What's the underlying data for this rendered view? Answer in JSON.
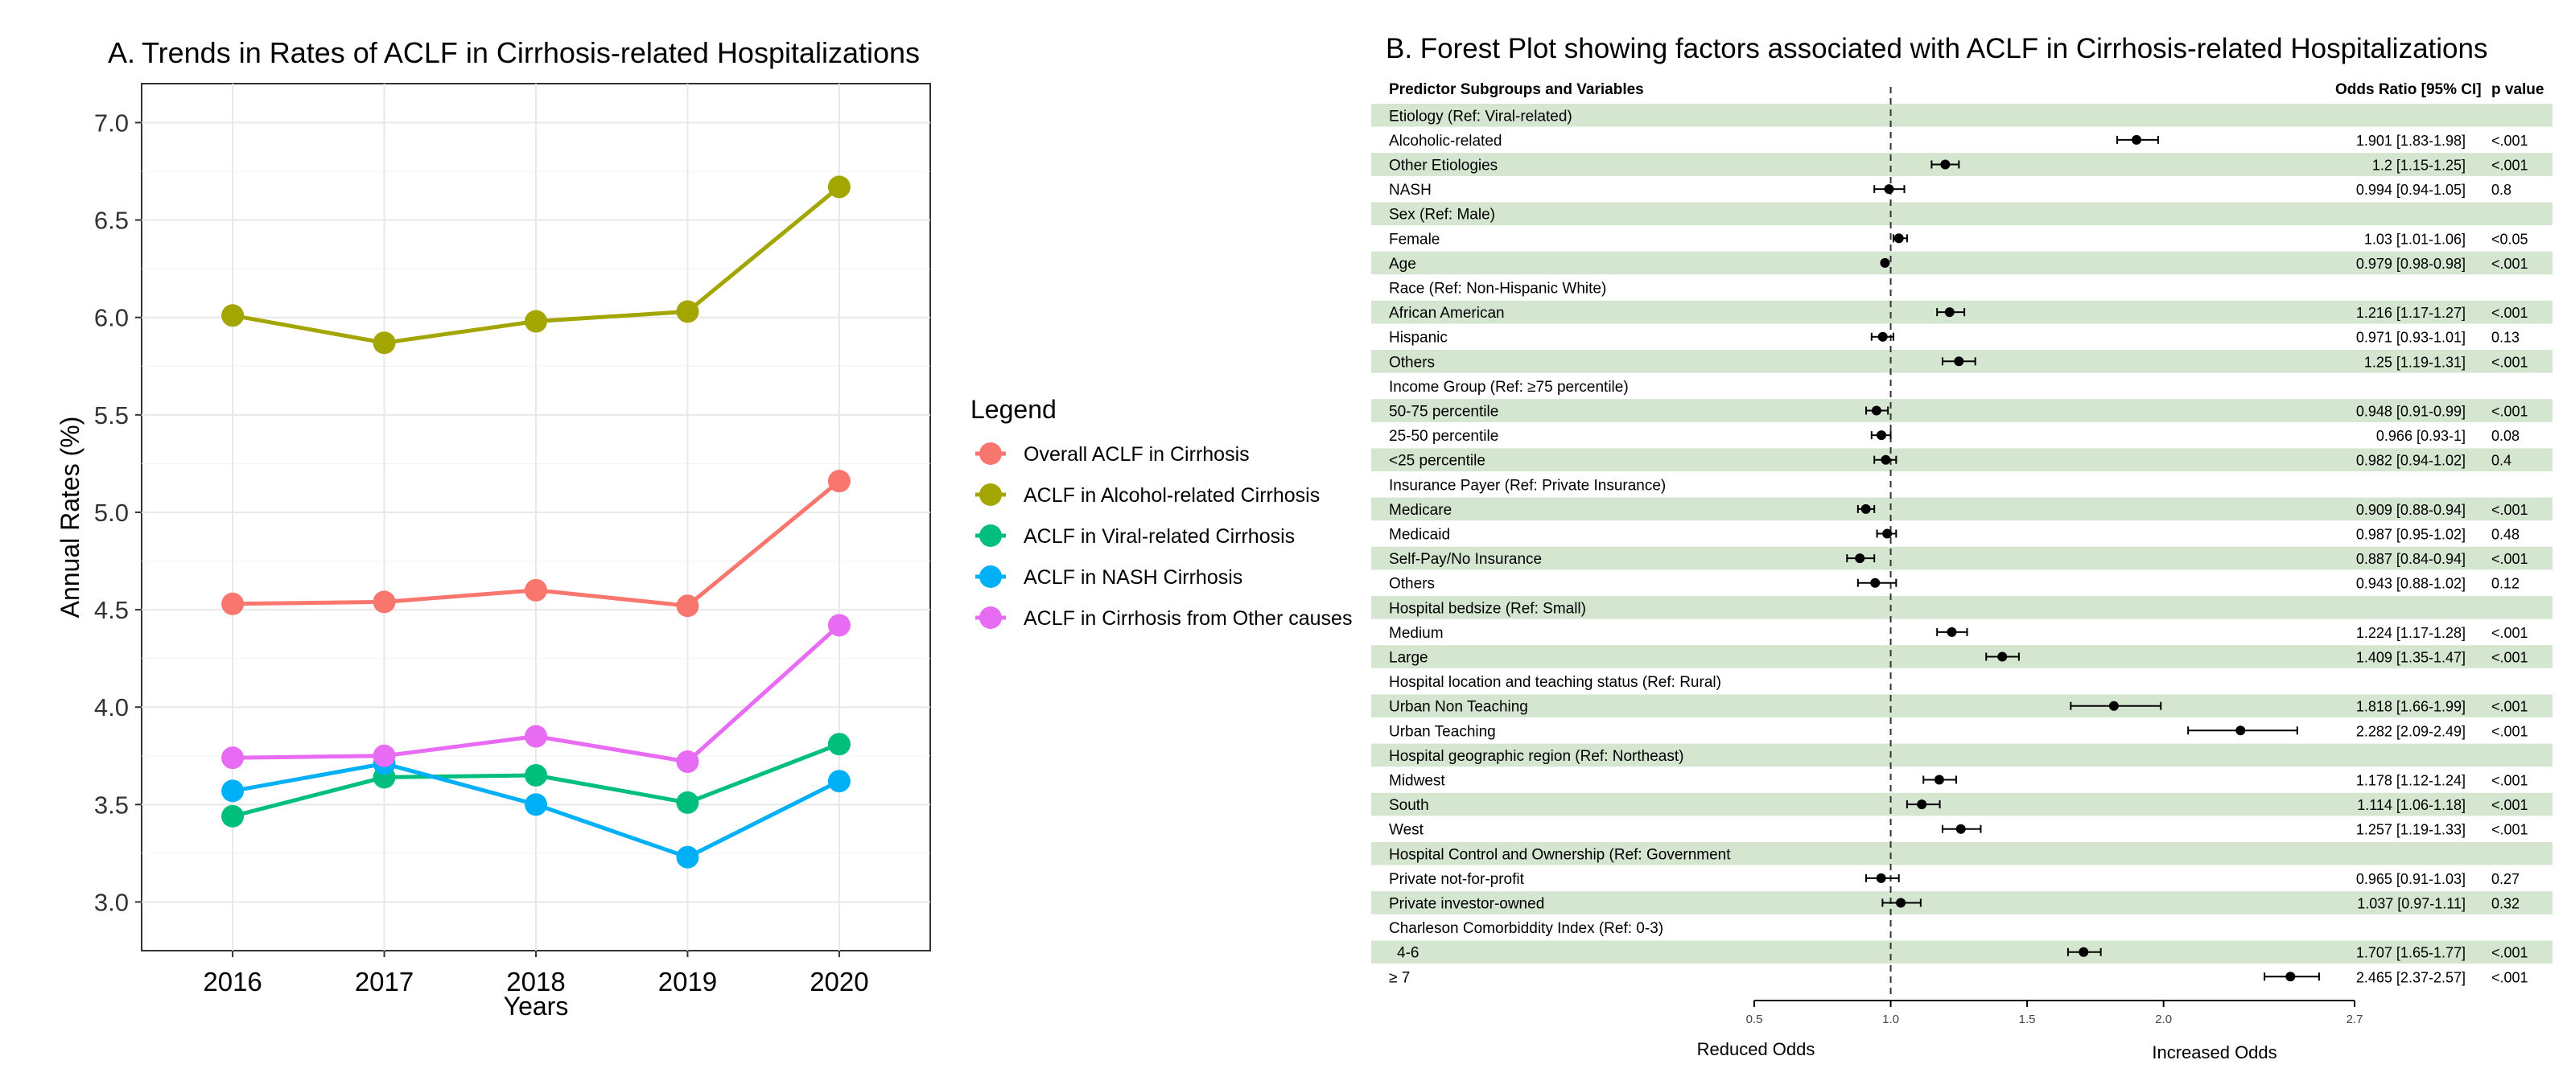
{
  "panel_a": {
    "letter": "A.",
    "title": "Trends in Rates of ACLF in Cirrhosis-related Hospitalizations",
    "xlabel": "Years",
    "ylabel": "Annual Rates (%)",
    "legend_title": "Legend"
  },
  "panel_b": {
    "title": "B. Forest Plot showing factors associated with ACLF in Cirrhosis-related Hospitalizations",
    "col_predictor": "Predictor Subgroups and Variables",
    "col_or": "Odds Ratio [95% CI]",
    "col_p": "p value",
    "reduced_label": "Reduced Odds",
    "increased_label": "Increased Odds"
  },
  "chart_data": [
    {
      "type": "line",
      "x": [
        2016,
        2017,
        2018,
        2019,
        2020
      ],
      "xlabel": "Years",
      "ylabel": "Annual Rates (%)",
      "ylim": [
        2.75,
        7.2
      ],
      "yticks": [
        3.0,
        3.5,
        4.0,
        4.5,
        5.0,
        5.5,
        6.0,
        6.5,
        7.0
      ],
      "ytick_labels": [
        "3.0",
        "3.5",
        "4.0",
        "4.5",
        "5.0",
        "5.5",
        "6.0",
        "6.5",
        "7.0"
      ],
      "xticks": [
        "2016",
        "2017",
        "2018",
        "2019",
        "2020"
      ],
      "grid": true,
      "legend_position": "right",
      "series": [
        {
          "name": "Overall ACLF in Cirrhosis",
          "color": "#F8766D",
          "values": [
            4.53,
            4.54,
            4.6,
            4.52,
            5.16
          ]
        },
        {
          "name": "ACLF in Alcohol-related Cirrhosis",
          "color": "#A3A500",
          "values": [
            6.01,
            5.87,
            5.98,
            6.03,
            6.67
          ]
        },
        {
          "name": "ACLF in Viral-related Cirrhosis",
          "color": "#00BF7D",
          "values": [
            3.44,
            3.64,
            3.65,
            3.51,
            3.81
          ]
        },
        {
          "name": "ACLF in NASH Cirrhosis",
          "color": "#00B0F6",
          "values": [
            3.57,
            3.71,
            3.5,
            3.23,
            3.62
          ]
        },
        {
          "name": "ACLF in Cirrhosis from Other causes",
          "color": "#E76BF3",
          "values": [
            3.74,
            3.75,
            3.85,
            3.72,
            4.42
          ]
        }
      ]
    },
    {
      "type": "scatter",
      "subtype": "forest",
      "x_scale": "linear",
      "xlim": [
        0.5,
        2.7
      ],
      "xticks": [
        0.5,
        1.0,
        1.5,
        2.0,
        2.7
      ],
      "xtick_labels": [
        "0.5",
        "1.0",
        "1.5",
        "2.0",
        "2.7"
      ],
      "reference_line": 1.0,
      "rows": [
        {
          "label": "Etiology (Ref: Viral-related)",
          "header": true
        },
        {
          "label": "Alcoholic-related",
          "or": 1.901,
          "lo": 1.83,
          "hi": 1.98,
          "or_text": "1.901 [1.83-1.98]",
          "p": "<.001"
        },
        {
          "label": "Other Etiologies",
          "or": 1.2,
          "lo": 1.15,
          "hi": 1.25,
          "or_text": "1.2 [1.15-1.25]",
          "p": "<.001"
        },
        {
          "label": "NASH",
          "or": 0.994,
          "lo": 0.94,
          "hi": 1.05,
          "or_text": "0.994 [0.94-1.05]",
          "p": "0.8"
        },
        {
          "label": "Sex (Ref: Male)",
          "header": true
        },
        {
          "label": "Female",
          "or": 1.03,
          "lo": 1.01,
          "hi": 1.06,
          "or_text": "1.03 [1.01-1.06]",
          "p": "<0.05"
        },
        {
          "label": "Age",
          "or": 0.979,
          "lo": 0.98,
          "hi": 0.98,
          "or_text": "0.979 [0.98-0.98]",
          "p": "<.001"
        },
        {
          "label": "Race (Ref: Non-Hispanic White)",
          "header": true
        },
        {
          "label": "African American",
          "or": 1.216,
          "lo": 1.17,
          "hi": 1.27,
          "or_text": "1.216 [1.17-1.27]",
          "p": "<.001"
        },
        {
          "label": "Hispanic",
          "or": 0.971,
          "lo": 0.93,
          "hi": 1.01,
          "or_text": "0.971 [0.93-1.01]",
          "p": "0.13"
        },
        {
          "label": "Others",
          "or": 1.25,
          "lo": 1.19,
          "hi": 1.31,
          "or_text": "1.25 [1.19-1.31]",
          "p": "<.001"
        },
        {
          "label": "Income Group (Ref: ≥75 percentile)",
          "header": true
        },
        {
          "label": "50-75 percentile",
          "or": 0.948,
          "lo": 0.91,
          "hi": 0.99,
          "or_text": "0.948 [0.91-0.99]",
          "p": "<.001"
        },
        {
          "label": "25-50 percentile",
          "or": 0.966,
          "lo": 0.93,
          "hi": 1.0,
          "or_text": "0.966 [0.93-1]",
          "p": "0.08"
        },
        {
          "label": "<25 percentile",
          "or": 0.982,
          "lo": 0.94,
          "hi": 1.02,
          "or_text": "0.982 [0.94-1.02]",
          "p": "0.4"
        },
        {
          "label": "Insurance Payer (Ref: Private Insurance)",
          "header": true
        },
        {
          "label": "Medicare",
          "or": 0.909,
          "lo": 0.88,
          "hi": 0.94,
          "or_text": "0.909 [0.88-0.94]",
          "p": "<.001"
        },
        {
          "label": "Medicaid",
          "or": 0.987,
          "lo": 0.95,
          "hi": 1.02,
          "or_text": "0.987 [0.95-1.02]",
          "p": "0.48"
        },
        {
          "label": "Self-Pay/No Insurance",
          "or": 0.887,
          "lo": 0.84,
          "hi": 0.94,
          "or_text": "0.887 [0.84-0.94]",
          "p": "<.001"
        },
        {
          "label": "Others",
          "or": 0.943,
          "lo": 0.88,
          "hi": 1.02,
          "or_text": "0.943 [0.88-1.02]",
          "p": "0.12"
        },
        {
          "label": "Hospital bedsize (Ref: Small)",
          "header": true
        },
        {
          "label": "Medium",
          "or": 1.224,
          "lo": 1.17,
          "hi": 1.28,
          "or_text": "1.224 [1.17-1.28]",
          "p": "<.001"
        },
        {
          "label": "Large",
          "or": 1.409,
          "lo": 1.35,
          "hi": 1.47,
          "or_text": "1.409 [1.35-1.47]",
          "p": "<.001"
        },
        {
          "label": "Hospital location and teaching status (Ref: Rural)",
          "header": true
        },
        {
          "label": "Urban Non Teaching",
          "or": 1.818,
          "lo": 1.66,
          "hi": 1.99,
          "or_text": "1.818 [1.66-1.99]",
          "p": "<.001"
        },
        {
          "label": "Urban Teaching",
          "or": 2.282,
          "lo": 2.09,
          "hi": 2.49,
          "or_text": "2.282 [2.09-2.49]",
          "p": "<.001"
        },
        {
          "label": "Hospital geographic region (Ref: Northeast)",
          "header": true
        },
        {
          "label": "Midwest",
          "or": 1.178,
          "lo": 1.12,
          "hi": 1.24,
          "or_text": "1.178 [1.12-1.24]",
          "p": "<.001"
        },
        {
          "label": "South",
          "or": 1.114,
          "lo": 1.06,
          "hi": 1.18,
          "or_text": "1.114 [1.06-1.18]",
          "p": "<.001"
        },
        {
          "label": "West",
          "or": 1.257,
          "lo": 1.19,
          "hi": 1.33,
          "or_text": "1.257 [1.19-1.33]",
          "p": "<.001"
        },
        {
          "label": "Hospital Control and Ownership (Ref: Government",
          "header": true
        },
        {
          "label": "Private not-for-profit",
          "or": 0.965,
          "lo": 0.91,
          "hi": 1.03,
          "or_text": "0.965 [0.91-1.03]",
          "p": "0.27"
        },
        {
          "label": "Private investor-owned",
          "or": 1.037,
          "lo": 0.97,
          "hi": 1.11,
          "or_text": "1.037 [0.97-1.11]",
          "p": "0.32"
        },
        {
          "label": "Charleson Comorbiddity Index (Ref: 0-3)",
          "header": true
        },
        {
          "label": "4-6",
          "or": 1.707,
          "lo": 1.65,
          "hi": 1.77,
          "or_text": "1.707 [1.65-1.77]",
          "p": "<.001"
        },
        {
          "label": "≥ 7",
          "or": 2.465,
          "lo": 2.37,
          "hi": 2.57,
          "or_text": "2.465 [2.37-2.57]",
          "p": "<.001"
        }
      ]
    }
  ]
}
